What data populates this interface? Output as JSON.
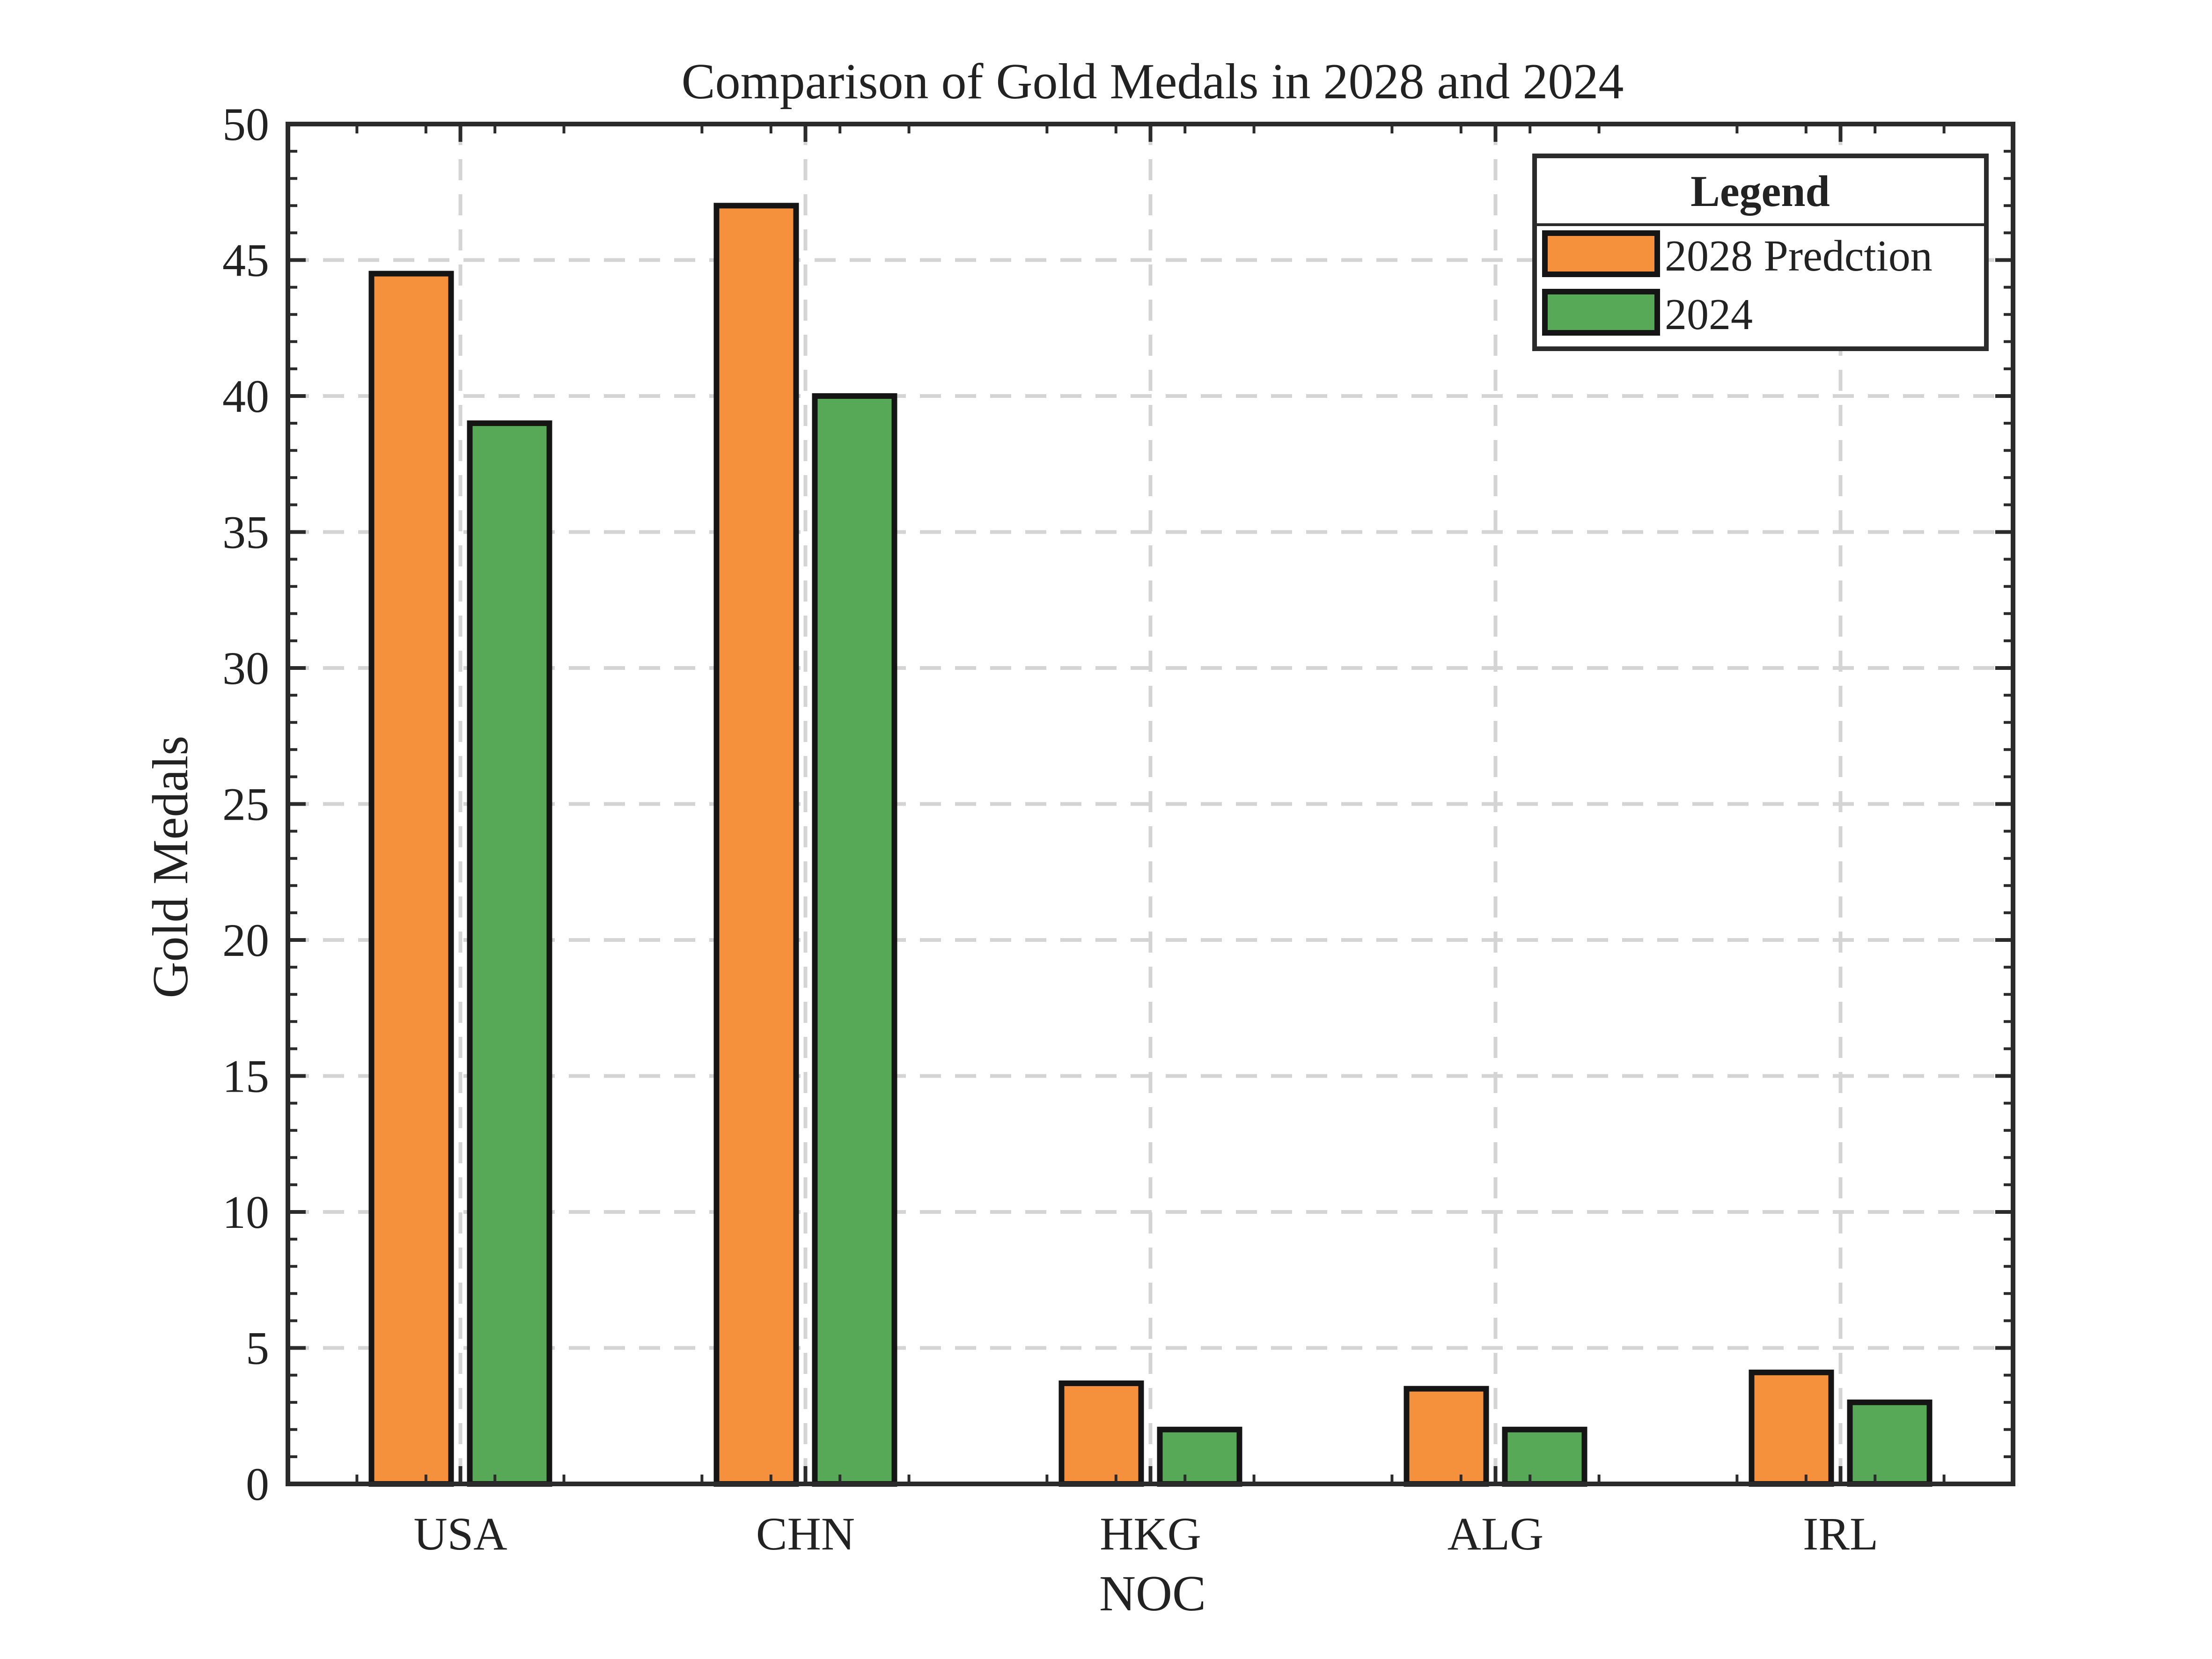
{
  "chart_data": {
    "type": "bar",
    "title": "Comparison of Gold Medals in 2028 and 2024",
    "xlabel": "NOC",
    "ylabel": "Gold Medals",
    "categories": [
      "USA",
      "CHN",
      "HKG",
      "ALG",
      "IRL"
    ],
    "series": [
      {
        "name": "2028 Predction",
        "values": [
          44.5,
          47,
          3.7,
          3.5,
          4.1
        ],
        "color": "#F5903D"
      },
      {
        "name": "2024",
        "values": [
          39,
          40,
          2,
          2,
          3
        ],
        "color": "#58A957"
      }
    ],
    "ylim": [
      0,
      50
    ],
    "yticks": [
      0,
      5,
      10,
      15,
      20,
      25,
      30,
      35,
      40,
      45,
      50
    ],
    "grid": true,
    "legend": {
      "title": "Legend",
      "placement": "top-right"
    }
  }
}
